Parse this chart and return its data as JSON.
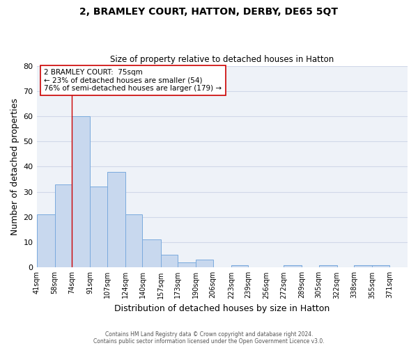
{
  "title": "2, BRAMLEY COURT, HATTON, DERBY, DE65 5QT",
  "subtitle": "Size of property relative to detached houses in Hatton",
  "xlabel": "Distribution of detached houses by size in Hatton",
  "ylabel": "Number of detached properties",
  "bar_left_edges": [
    41,
    58,
    74,
    91,
    107,
    124,
    140,
    157,
    173,
    190,
    206,
    223,
    239,
    256,
    272,
    289,
    305,
    322,
    338,
    355
  ],
  "bar_right_edges": [
    58,
    74,
    91,
    107,
    124,
    140,
    157,
    173,
    190,
    206,
    223,
    239,
    256,
    272,
    289,
    305,
    322,
    338,
    355,
    371
  ],
  "bar_heights": [
    21,
    33,
    60,
    32,
    38,
    21,
    11,
    5,
    2,
    3,
    0,
    1,
    0,
    0,
    1,
    0,
    1,
    0,
    1,
    1
  ],
  "bar_color": "#c8d8ee",
  "bar_edgecolor": "#7aaadd",
  "xlim_left": 41,
  "xlim_right": 388,
  "ylim_top": 80,
  "xtick_labels": [
    "41sqm",
    "58sqm",
    "74sqm",
    "91sqm",
    "107sqm",
    "124sqm",
    "140sqm",
    "157sqm",
    "173sqm",
    "190sqm",
    "206sqm",
    "223sqm",
    "239sqm",
    "256sqm",
    "272sqm",
    "289sqm",
    "305sqm",
    "322sqm",
    "338sqm",
    "355sqm",
    "371sqm"
  ],
  "xtick_positions": [
    41,
    58,
    74,
    91,
    107,
    124,
    140,
    157,
    173,
    190,
    206,
    223,
    239,
    256,
    272,
    289,
    305,
    322,
    338,
    355,
    371
  ],
  "vline_x": 74,
  "vline_color": "#cc0000",
  "annotation_line1": "2 BRAMLEY COURT:  75sqm",
  "annotation_line2": "← 23% of detached houses are smaller (54)",
  "annotation_line3": "76% of semi-detached houses are larger (179) →",
  "footer_line1": "Contains HM Land Registry data © Crown copyright and database right 2024.",
  "footer_line2": "Contains public sector information licensed under the Open Government Licence v3.0.",
  "grid_color": "#d0d8e8",
  "bg_color": "#eef2f8",
  "yticks": [
    0,
    10,
    20,
    30,
    40,
    50,
    60,
    70,
    80
  ]
}
